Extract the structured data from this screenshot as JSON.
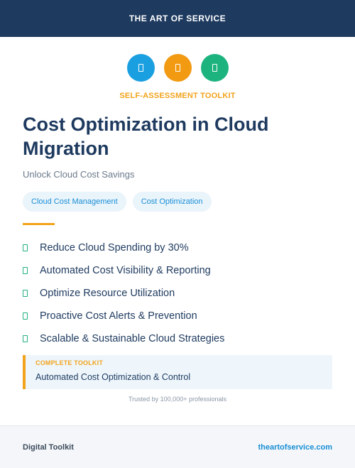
{
  "header": {
    "title": "THE ART OF SERVICE"
  },
  "icons": [
    {
      "name": "document-icon",
      "color": "#1a9fe0"
    },
    {
      "name": "document-icon",
      "color": "#f29a12"
    },
    {
      "name": "document-icon",
      "color": "#1db37f"
    }
  ],
  "kicker": "SELF-ASSESSMENT TOOLKIT",
  "title": "Cost Optimization in Cloud Migration",
  "subtitle": "Unlock Cloud Cost Savings",
  "tags": [
    "Cloud Cost Management",
    "Cost Optimization"
  ],
  "features": [
    "Reduce Cloud Spending by 30%",
    "Automated Cost Visibility & Reporting",
    "Optimize Resource Utilization",
    "Proactive Cost Alerts & Prevention",
    "Scalable & Sustainable Cloud Strategies"
  ],
  "toolkit_box": {
    "label": "COMPLETE TOOLKIT",
    "text": "Automated Cost Optimization & Control"
  },
  "trusted": "Trusted by 100,000+ professionals",
  "footer": {
    "left": "Digital Toolkit",
    "right": "theartofservice.com"
  }
}
